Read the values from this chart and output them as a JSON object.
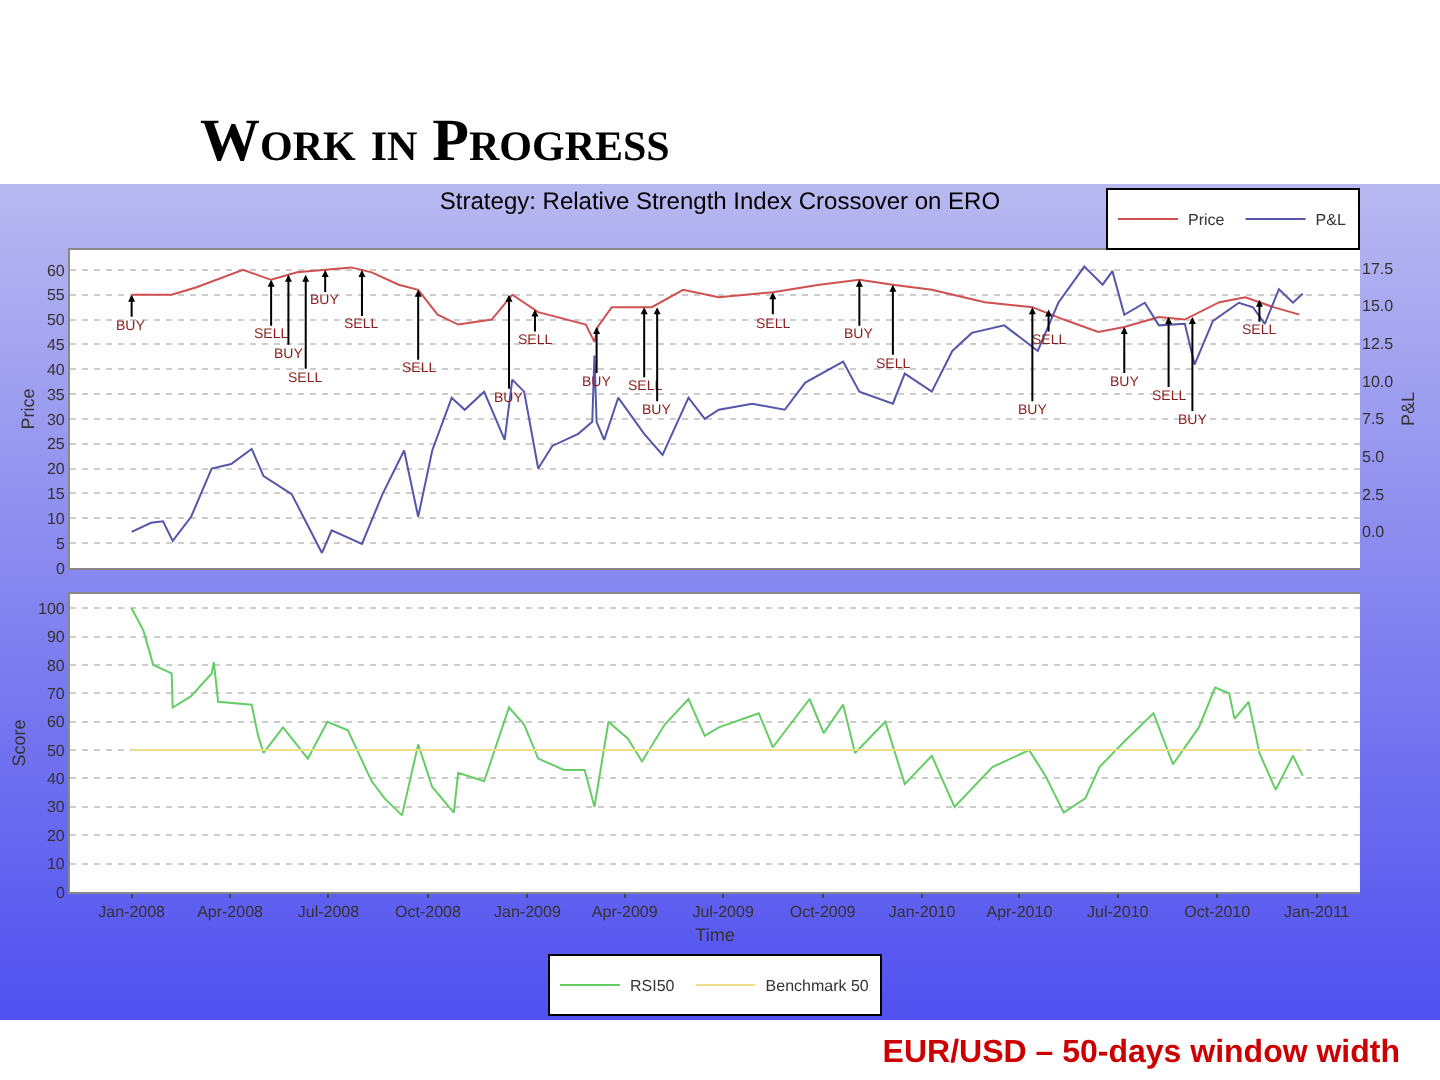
{
  "chart_data": [
    {
      "type": "line",
      "title": "Strategy: Relative Strength Index Crossover on ERO",
      "ylabel": "Price",
      "y2label": "P&L",
      "xlim": [
        "2007-11-05",
        "2011-02-10"
      ],
      "ylim": [
        0,
        64
      ],
      "yticks": [
        0,
        5,
        10,
        15,
        20,
        25,
        30,
        35,
        40,
        45,
        50,
        55,
        60
      ],
      "y2lim": [
        -2.4,
        18.7
      ],
      "y2ticks": [
        {
          "value": 0,
          "label": "0.0"
        },
        2.5,
        {
          "value": 5,
          "label": "5.0"
        },
        7.5,
        {
          "value": 10,
          "label": "10.0"
        },
        12.5,
        {
          "value": 15,
          "label": "15.0"
        },
        17.5
      ],
      "tick_labels": "y",
      "grid": "y",
      "legend": "top right",
      "marker": "none",
      "line_style": "solid",
      "series": [
        {
          "name": "Price",
          "color": "#d05050",
          "x": [
            "2008-01-01",
            "2008-02-07",
            "2008-03-01",
            "2008-04-13",
            "2008-05-09",
            "2008-06-02",
            "2008-07-22",
            "2008-08-10",
            "2008-09-04",
            "2008-09-22",
            "2008-10-10",
            "2008-10-29",
            "2008-11-29",
            "2008-12-18",
            "2009-01-11",
            "2009-02-24",
            "2009-03-04",
            "2009-03-07",
            "2009-03-20",
            "2009-04-26",
            "2009-05-25",
            "2009-06-27",
            "2009-08-16",
            "2009-09-28",
            "2009-11-04",
            "2009-12-05",
            "2010-01-10",
            "2010-02-28",
            "2010-04-13",
            "2010-05-12",
            "2010-06-13",
            "2010-07-07",
            "2010-08-08",
            "2010-09-01",
            "2010-10-03",
            "2010-10-27",
            "2010-11-22",
            "2010-12-16"
          ],
          "values": [
            55,
            55,
            56.5,
            60,
            58,
            59.5,
            60.5,
            59.5,
            57,
            56,
            51,
            49,
            50,
            55,
            51.5,
            49,
            45.5,
            48.5,
            52.5,
            52.5,
            56,
            54.5,
            55.5,
            57,
            58,
            57,
            56,
            53.5,
            52.5,
            50,
            47.5,
            48.5,
            50.5,
            50,
            53.5,
            54.5,
            52.5,
            51
          ]
        },
        {
          "name": "P&L",
          "color": "#5555aa",
          "axis": "y2",
          "x": [
            "2008-01-01",
            "2008-01-19",
            "2008-01-30",
            "2008-02-08",
            "2008-02-25",
            "2008-03-15",
            "2008-04-02",
            "2008-04-21",
            "2008-05-02",
            "2008-05-28",
            "2008-06-25",
            "2008-07-04",
            "2008-08-01",
            "2008-08-20",
            "2008-09-09",
            "2008-09-22",
            "2008-10-05",
            "2008-10-23",
            "2008-11-04",
            "2008-11-22",
            "2008-12-11",
            "2008-12-18",
            "2008-12-29",
            "2009-01-11",
            "2009-01-24",
            "2009-02-17",
            "2009-03-02",
            "2009-03-04",
            "2009-03-06",
            "2009-03-13",
            "2009-03-26",
            "2009-04-19",
            "2009-05-06",
            "2009-05-30",
            "2009-06-14",
            "2009-06-27",
            "2009-07-28",
            "2009-08-27",
            "2009-09-15",
            "2009-10-20",
            "2009-11-04",
            "2009-12-05",
            "2009-12-16",
            "2010-01-10",
            "2010-01-29",
            "2010-02-16",
            "2010-03-18",
            "2010-04-18",
            "2010-05-07",
            "2010-05-31",
            "2010-06-17",
            "2010-06-26",
            "2010-07-07",
            "2010-07-26",
            "2010-08-08",
            "2010-09-01",
            "2010-09-10",
            "2010-09-27",
            "2010-10-21",
            "2010-11-03",
            "2010-11-14",
            "2010-11-27",
            "2010-12-10",
            "2010-12-19"
          ],
          "values": [
            0,
            0.6,
            0.7,
            -0.6,
            1,
            4.2,
            4.5,
            5.5,
            3.7,
            2.5,
            -1.4,
            0.1,
            -0.8,
            2.5,
            5.4,
            1,
            5.4,
            8.9,
            8.1,
            9.3,
            6.1,
            10.1,
            9.3,
            4.2,
            5.7,
            6.5,
            7.3,
            11.7,
            7.3,
            6.1,
            8.9,
            6.5,
            5.1,
            8.9,
            7.5,
            8.1,
            8.5,
            8.1,
            9.9,
            11.3,
            9.3,
            8.5,
            10.5,
            9.3,
            12,
            13.2,
            13.7,
            12,
            15.2,
            17.6,
            16.4,
            17.3,
            14.4,
            15.2,
            13.7,
            13.8,
            11.1,
            14,
            15.2,
            14.9,
            13.8,
            16.1,
            15.2,
            15.8
          ]
        }
      ],
      "annotations": [
        "Work in Progress",
        {
          "text": "BUY",
          "x": "2008-01-01",
          "y": 55
        },
        {
          "text": "SELL",
          "x": "2008-05-09",
          "y": 58
        },
        {
          "text": "BUY",
          "x": "2008-05-25",
          "y": 59
        },
        {
          "text": "SELL",
          "x": "2008-06-10",
          "y": 59
        },
        {
          "text": "BUY",
          "x": "2008-06-28",
          "y": 60
        },
        {
          "text": "SELL",
          "x": "2008-08-01",
          "y": 60
        },
        {
          "text": "SELL",
          "x": "2008-09-22",
          "y": 56
        },
        {
          "text": "BUY",
          "x": "2008-12-15",
          "y": 55
        },
        {
          "text": "SELL",
          "x": "2009-01-08",
          "y": 52
        },
        {
          "text": "BUY",
          "x": "2009-03-06",
          "y": 48.5
        },
        {
          "text": "SELL",
          "x": "2009-04-19",
          "y": 52.5
        },
        {
          "text": "BUY",
          "x": "2009-05-01",
          "y": 52.5
        },
        {
          "text": "SELL",
          "x": "2009-08-16",
          "y": 55.5
        },
        {
          "text": "BUY",
          "x": "2009-11-04",
          "y": 58
        },
        {
          "text": "SELL",
          "x": "2009-12-05",
          "y": 57
        },
        {
          "text": "BUY",
          "x": "2010-04-13",
          "y": 52.5
        },
        {
          "text": "SELL",
          "x": "2010-04-28",
          "y": 52
        },
        {
          "text": "BUY",
          "x": "2010-07-07",
          "y": 48.5
        },
        {
          "text": "SELL",
          "x": "2010-08-17",
          "y": 50.5
        },
        {
          "text": "BUY",
          "x": "2010-09-08",
          "y": 50.5
        },
        {
          "text": "SELL",
          "x": "2010-11-09",
          "y": 54
        }
      ]
    },
    {
      "type": "line",
      "xlabel": "Time",
      "ylabel": "Score",
      "xlim": [
        "2007-11-05",
        "2011-02-10"
      ],
      "xticks": [
        {
          "value": "2008-01-01",
          "label": "Jan-2008"
        },
        {
          "value": "2008-04-01",
          "label": "Apr-2008"
        },
        {
          "value": "2008-07-01",
          "label": "Jul-2008"
        },
        {
          "value": "2008-10-01",
          "label": "Oct-2008"
        },
        {
          "value": "2009-01-01",
          "label": "Jan-2009"
        },
        {
          "value": "2009-04-01",
          "label": "Apr-2009"
        },
        {
          "value": "2009-07-01",
          "label": "Jul-2009"
        },
        {
          "value": "2009-10-01",
          "label": "Oct-2009"
        },
        {
          "value": "2010-01-01",
          "label": "Jan-2010"
        },
        {
          "value": "2010-04-01",
          "label": "Apr-2010"
        },
        {
          "value": "2010-07-01",
          "label": "Jul-2010"
        },
        {
          "value": "2010-10-01",
          "label": "Oct-2010"
        },
        {
          "value": "2011-01-01",
          "label": "Jan-2011"
        }
      ],
      "ylim": [
        0,
        105
      ],
      "yticks": [
        0,
        10,
        20,
        30,
        40,
        50,
        60,
        70,
        80,
        90,
        100
      ],
      "grid": "y",
      "legend": "bottom",
      "marker": "none",
      "line_style": "solid",
      "series": [
        {
          "name": "RSI50",
          "color": "#66cc66",
          "x": [
            "2008-01-01",
            "2008-01-12",
            "2008-01-21",
            "2008-02-07",
            "2008-02-08",
            "2008-02-25",
            "2008-03-15",
            "2008-03-17",
            "2008-03-21",
            "2008-04-21",
            "2008-04-27",
            "2008-05-02",
            "2008-05-20",
            "2008-06-12",
            "2008-06-30",
            "2008-07-19",
            "2008-08-10",
            "2008-08-22",
            "2008-09-07",
            "2008-09-22",
            "2008-10-05",
            "2008-10-25",
            "2008-10-29",
            "2008-11-22",
            "2008-12-15",
            "2008-12-29",
            "2009-01-11",
            "2009-02-04",
            "2009-02-23",
            "2009-03-04",
            "2009-03-17",
            "2009-04-04",
            "2009-04-17",
            "2009-05-08",
            "2009-05-30",
            "2009-06-14",
            "2009-06-27",
            "2009-08-03",
            "2009-08-16",
            "2009-09-19",
            "2009-10-02",
            "2009-10-20",
            "2009-10-31",
            "2009-11-28",
            "2009-12-16",
            "2010-01-10",
            "2010-01-31",
            "2010-03-07",
            "2010-04-10",
            "2010-04-25",
            "2010-05-12",
            "2010-06-01",
            "2010-06-14",
            "2010-07-07",
            "2010-08-03",
            "2010-08-21",
            "2010-09-14",
            "2010-09-29",
            "2010-10-12",
            "2010-10-17",
            "2010-10-30",
            "2010-11-09",
            "2010-11-24",
            "2010-12-10",
            "2010-12-19"
          ],
          "values": [
            100,
            92,
            80,
            77,
            65,
            69,
            77,
            81,
            67,
            66,
            55,
            49,
            58,
            47,
            60,
            57,
            39,
            33,
            27,
            52,
            37,
            28,
            42,
            39,
            65,
            59,
            47,
            43,
            43,
            30,
            60,
            54,
            46,
            59,
            68,
            55,
            58,
            63,
            51,
            68,
            56,
            66,
            49,
            60,
            38,
            48,
            30,
            44,
            50,
            41,
            28,
            33,
            44,
            53,
            63,
            45,
            58,
            72,
            70,
            61,
            67,
            49,
            36,
            48,
            41
          ]
        },
        {
          "name": "Benchmark 50",
          "color": "#eee08a",
          "x": [
            "2008-01-01",
            "2010-12-19"
          ],
          "values": [
            50,
            50
          ]
        }
      ],
      "annotations": [
        "EUR/USD – 50-days window width"
      ]
    }
  ]
}
